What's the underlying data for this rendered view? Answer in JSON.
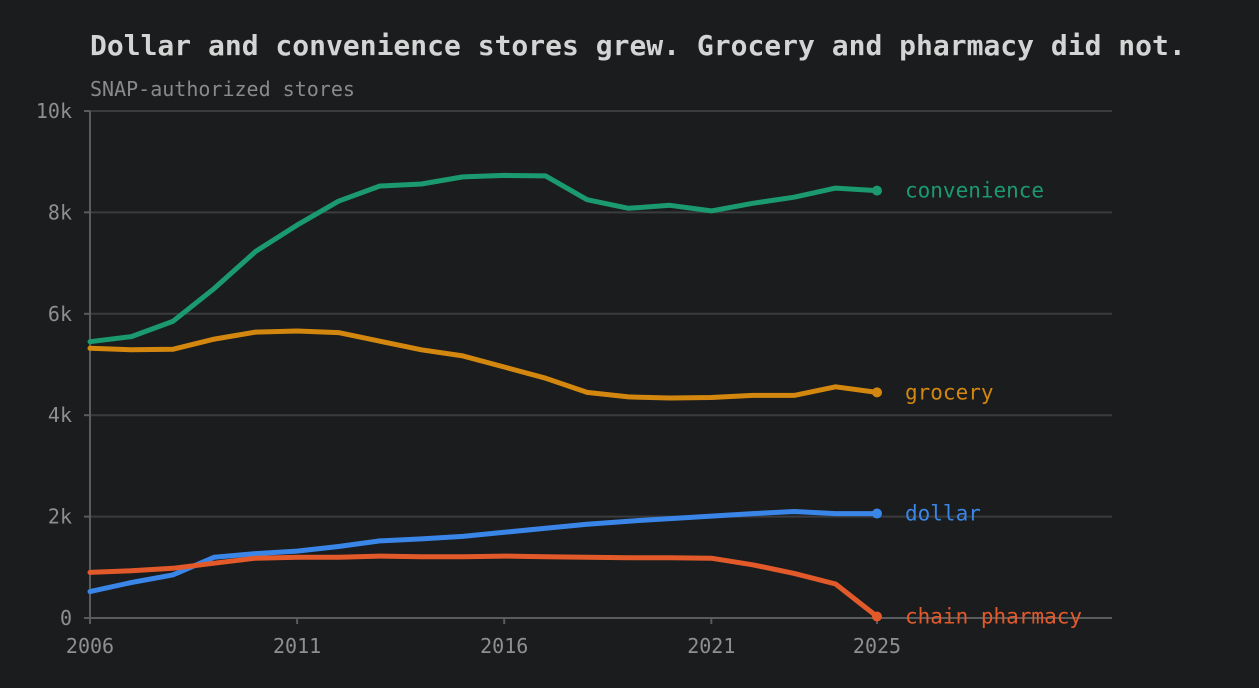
{
  "chart_data": {
    "type": "line",
    "title": "Dollar and convenience stores grew. Grocery and pharmacy did not.",
    "subtitle": "SNAP-authorized stores",
    "xlabel": "",
    "ylabel": "",
    "x": [
      2006,
      2007,
      2008,
      2009,
      2010,
      2011,
      2012,
      2013,
      2014,
      2015,
      2016,
      2017,
      2018,
      2019,
      2020,
      2021,
      2022,
      2023,
      2024,
      2025
    ],
    "xlim": [
      2006,
      2025
    ],
    "ylim": [
      0,
      10000
    ],
    "x_ticks": [
      2006,
      2011,
      2016,
      2021,
      2025
    ],
    "x_tick_labels": [
      "2006",
      "2011",
      "2016",
      "2021",
      "2025"
    ],
    "y_ticks": [
      0,
      2000,
      4000,
      6000,
      8000,
      10000
    ],
    "y_tick_labels": [
      "0",
      "2k",
      "4k",
      "6k",
      "8k",
      "10k"
    ],
    "grid": true,
    "legend": "direct labels at line ends, right",
    "series": [
      {
        "name": "convenience",
        "color": "#1a9a6e",
        "values": [
          5450,
          5550,
          5850,
          6500,
          7230,
          7750,
          8220,
          8520,
          8560,
          8700,
          8730,
          8720,
          8250,
          8080,
          8140,
          8030,
          8180,
          8300,
          8480,
          8430
        ]
      },
      {
        "name": "grocery",
        "color": "#d4870f",
        "values": [
          5320,
          5290,
          5300,
          5500,
          5640,
          5660,
          5630,
          5460,
          5290,
          5170,
          4950,
          4730,
          4450,
          4360,
          4340,
          4350,
          4390,
          4390,
          4560,
          4450
        ]
      },
      {
        "name": "dollar",
        "color": "#3a86e8",
        "values": [
          520,
          700,
          850,
          1200,
          1270,
          1320,
          1410,
          1520,
          1560,
          1610,
          1690,
          1770,
          1850,
          1910,
          1960,
          2010,
          2060,
          2100,
          2060,
          2060
        ]
      },
      {
        "name": "chain pharmacy",
        "color": "#e35a2a",
        "values": [
          900,
          930,
          980,
          1080,
          1180,
          1200,
          1200,
          1220,
          1210,
          1210,
          1220,
          1210,
          1200,
          1190,
          1190,
          1180,
          1050,
          880,
          670,
          30
        ]
      }
    ]
  }
}
